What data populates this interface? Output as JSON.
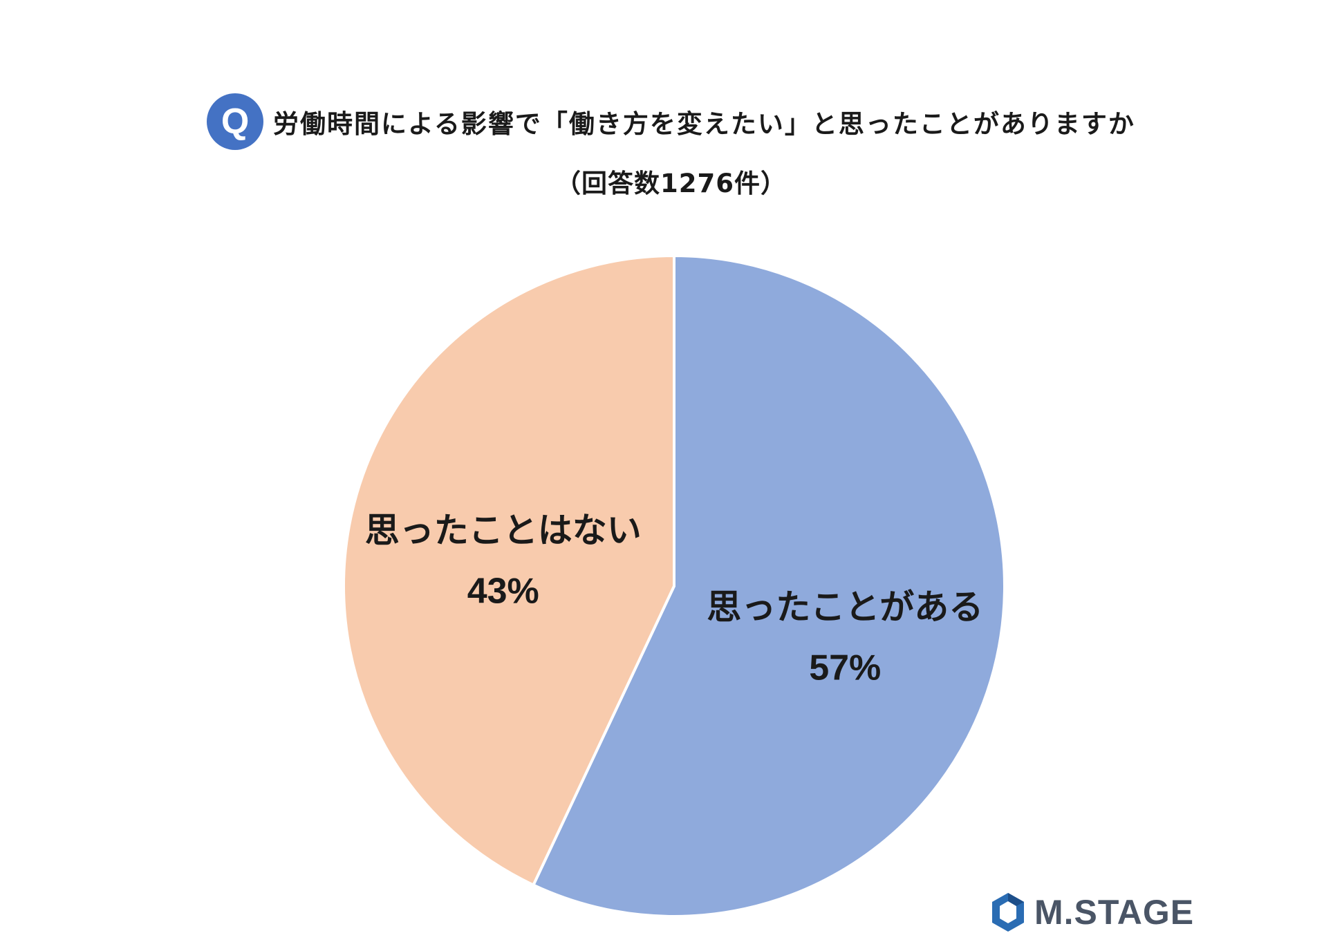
{
  "header": {
    "q_badge": "Q",
    "title": "労働時間による影響で「働き方を変えたい」と思ったことがありますか",
    "subtitle": "（回答数1276件）"
  },
  "chart_data": {
    "type": "pie",
    "title": "労働時間による影響で「働き方を変えたい」と思ったことがありますか",
    "subtitle": "（回答数1276件）",
    "slices": [
      {
        "label": "思ったことがある",
        "value": 57,
        "value_label": "57%",
        "color": "#8faadc"
      },
      {
        "label": "思ったことはない",
        "value": 43,
        "value_label": "43%",
        "color": "#f8cbad"
      }
    ],
    "start_angle": "12 o'clock",
    "direction": "clockwise",
    "legend": "none"
  },
  "logo": {
    "text": "M.STAGE",
    "icon": "hexagon-logo-icon",
    "colors": [
      "#2a6cb3",
      "#4a5566"
    ]
  }
}
